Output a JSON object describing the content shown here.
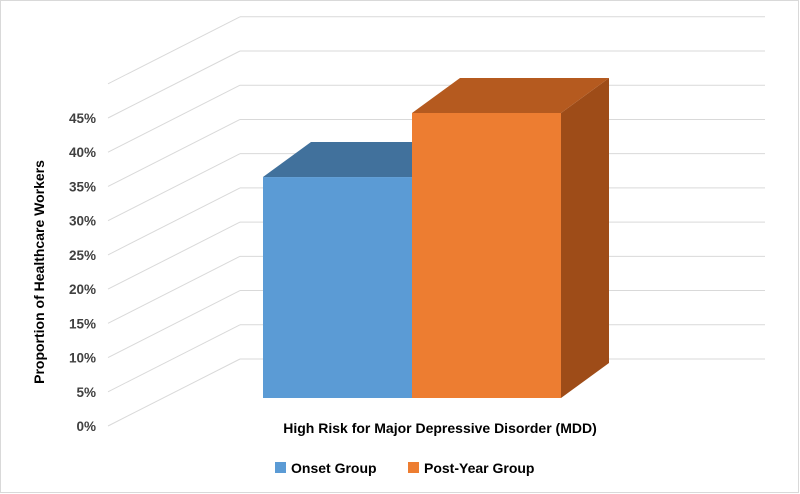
{
  "chart_data": {
    "type": "bar",
    "style": "3d-clustered-column",
    "categories": [
      "High Risk for Major Depressive Disorder (MDD)"
    ],
    "xlabel": "High Risk for Major Depressive Disorder (MDD)",
    "ylabel": "Proportion of Healthcare Workers",
    "ylim": [
      0,
      45
    ],
    "y_ticks": [
      "0%",
      "5%",
      "10%",
      "15%",
      "20%",
      "25%",
      "30%",
      "35%",
      "40%",
      "45%"
    ],
    "series": [
      {
        "name": "Onset Group",
        "values": [
          34.5
        ],
        "color": "#5b9bd5",
        "top_color": "#41719c"
      },
      {
        "name": "Post-Year Group",
        "values": [
          44.5
        ],
        "color": "#ed7d31",
        "top_color": "#b55a1f",
        "side_color": "#9e4c18"
      }
    ],
    "grid": true,
    "legend": "bottom"
  }
}
